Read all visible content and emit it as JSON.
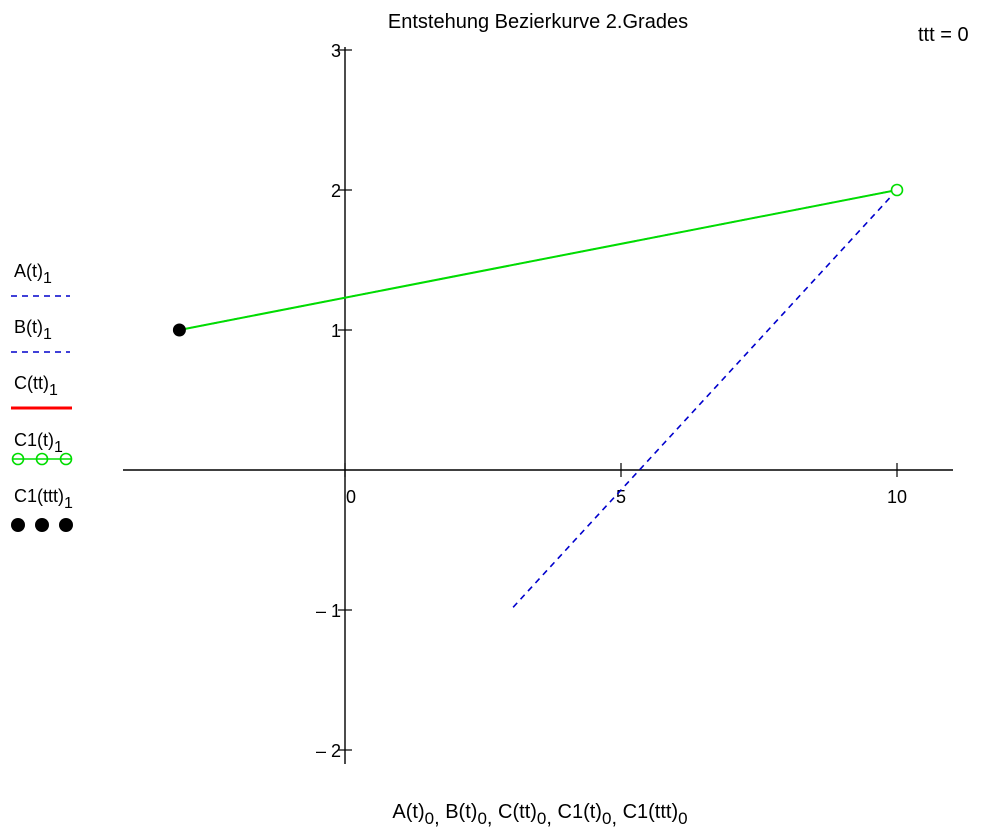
{
  "param_readout": {
    "name": "ttt",
    "value": "0"
  },
  "chart_data": {
    "type": "line",
    "title": "Entstehung Bezierkurve 2.Grades",
    "xlabel_parts": [
      {
        "base": "A(t)",
        "sub": "0",
        "sep": ", "
      },
      {
        "base": "B(t)",
        "sub": "0",
        "sep": ", "
      },
      {
        "base": "C(tt)",
        "sub": "0",
        "sep": ", "
      },
      {
        "base": "C1(t)",
        "sub": "0",
        "sep": ", "
      },
      {
        "base": "C1(ttt)",
        "sub": "0",
        "sep": ""
      }
    ],
    "xlim": [
      -4,
      11
    ],
    "ylim": [
      -2,
      3
    ],
    "x_ticks": [
      {
        "value": 0,
        "label": "0"
      },
      {
        "value": 5,
        "label": "5"
      },
      {
        "value": 10,
        "label": "10"
      }
    ],
    "y_ticks": [
      {
        "value": 3,
        "label": "3"
      },
      {
        "value": 2,
        "label": "2"
      },
      {
        "value": 1,
        "label": "1"
      },
      {
        "value": -1,
        "label": "– 1"
      },
      {
        "value": -2,
        "label": "– 2"
      }
    ],
    "legend_position": "left",
    "series": [
      {
        "legend_base": "A(t)",
        "legend_sub": "1",
        "color": "#0000cc",
        "style": "dashed",
        "x": [
          -3,
          10
        ],
        "y": [
          1,
          2
        ]
      },
      {
        "legend_base": "B(t)",
        "legend_sub": "1",
        "color": "#0000cc",
        "style": "dashed",
        "x": [
          10,
          3
        ],
        "y": [
          2,
          -1
        ]
      },
      {
        "legend_base": "C(tt)",
        "legend_sub": "1",
        "color": "#ff0000",
        "style": "solid-thick",
        "x": [],
        "y": []
      },
      {
        "legend_base": "C1(t)",
        "legend_sub": "1",
        "color": "#00dd00",
        "style": "solid-circles",
        "x": [
          -3,
          10
        ],
        "y": [
          1,
          2
        ],
        "marker_x": [
          10
        ],
        "marker_y": [
          2
        ]
      },
      {
        "legend_base": "C1(ttt)",
        "legend_sub": "1",
        "color": "#000000",
        "style": "dots",
        "x": [
          -3
        ],
        "y": [
          1
        ]
      }
    ]
  }
}
